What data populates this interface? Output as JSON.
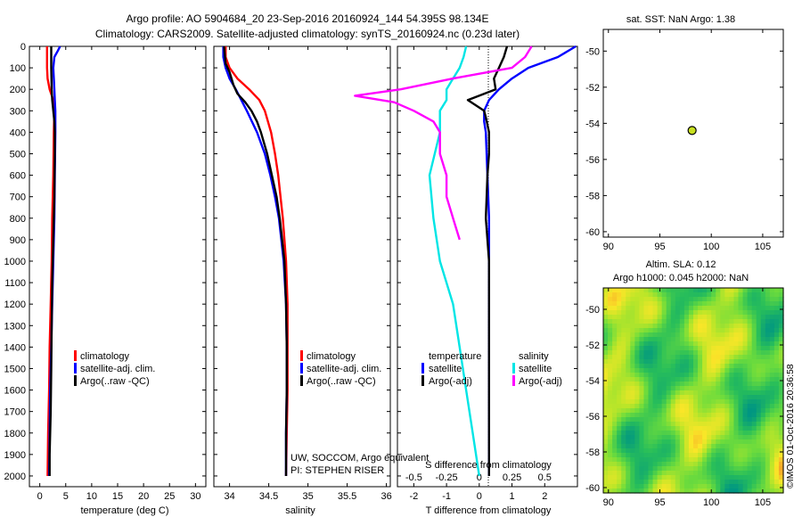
{
  "title": {
    "line1": "Argo profile: AO 5904684_20 23-Sep-2016 20160924_144 54.395S 98.134E",
    "line2": "Climatology: CARS2009. Satellite-adjusted climatology: synTS_20160924.nc (0.23d later)"
  },
  "colors": {
    "clim": "#ff0000",
    "sat": "#0000ff",
    "argo": "#000000",
    "cyan": "#00e5e5",
    "magenta": "#ff00ff",
    "dot": "#c8e020"
  },
  "chart_data": [
    {
      "type": "line",
      "id": "temperature",
      "xlabel": "temperature (deg C)",
      "ylabel": "",
      "xlim": [
        -2,
        32
      ],
      "ylim": [
        2050,
        0
      ],
      "xticks": [
        "0",
        "5",
        "10",
        "15",
        "20",
        "25",
        "30"
      ],
      "xtick_values": [
        0,
        5,
        10,
        15,
        20,
        25,
        30
      ],
      "yticks": [
        "0",
        "100",
        "200",
        "300",
        "400",
        "500",
        "600",
        "700",
        "800",
        "900",
        "1000",
        "1100",
        "1200",
        "1300",
        "1400",
        "1500",
        "1600",
        "1700",
        "1800",
        "1900",
        "2000"
      ],
      "ytick_values": [
        0,
        100,
        200,
        300,
        400,
        500,
        600,
        700,
        800,
        900,
        1000,
        1100,
        1200,
        1300,
        1400,
        1500,
        1600,
        1700,
        1800,
        1900,
        2000
      ],
      "legend": [
        "climatology",
        "satellite-adj. clim.",
        "Argo(..raw -QC)"
      ],
      "series": [
        {
          "name": "climatology",
          "color": "#ff0000",
          "depth": [
            0,
            50,
            100,
            150,
            200,
            250,
            300,
            400,
            600,
            800,
            1000,
            1200,
            1400,
            1600,
            1800,
            2000
          ],
          "values": [
            1.4,
            1.4,
            1.4,
            1.5,
            1.9,
            2.6,
            2.8,
            2.7,
            2.6,
            2.4,
            2.3,
            2.1,
            1.9,
            1.8,
            1.6,
            1.5
          ]
        },
        {
          "name": "satellite-adj. clim.",
          "color": "#0000ff",
          "depth": [
            0,
            20,
            50,
            100,
            150,
            200,
            250,
            300,
            400,
            600,
            800,
            1000,
            1200,
            1400,
            1600,
            1800,
            2000
          ],
          "values": [
            3.9,
            3.5,
            2.8,
            2.6,
            2.7,
            2.8,
            2.9,
            3.0,
            3.0,
            2.9,
            2.8,
            2.6,
            2.4,
            2.2,
            2.0,
            1.9,
            1.8
          ]
        },
        {
          "name": "Argo(..raw -QC)",
          "color": "#000000",
          "depth": [
            0,
            100,
            200,
            250,
            300,
            350,
            400,
            500,
            700,
            900,
            1100,
            1300,
            1500,
            1700,
            1900,
            2000
          ],
          "values": [
            2.2,
            2.2,
            2.3,
            2.4,
            2.6,
            2.8,
            2.9,
            2.9,
            2.8,
            2.6,
            2.4,
            2.3,
            2.2,
            2.1,
            1.9,
            1.9
          ]
        }
      ]
    },
    {
      "type": "line",
      "id": "salinity",
      "xlabel": "salinity",
      "xlim": [
        33.8,
        36.05
      ],
      "ylim": [
        2050,
        0
      ],
      "xticks": [
        "34",
        "34.5",
        "35",
        "35.5",
        "36"
      ],
      "xtick_values": [
        34,
        34.5,
        35,
        35.5,
        36
      ],
      "legend": [
        "climatology",
        "satellite-adj. clim.",
        "Argo(..raw -QC)"
      ],
      "annotation": [
        "UW, SOCCOM, Argo equivalent",
        "PI: STEPHEN RISER"
      ],
      "series": [
        {
          "name": "climatology",
          "color": "#ff0000",
          "depth": [
            0,
            50,
            100,
            150,
            200,
            250,
            300,
            400,
            500,
            600,
            700,
            800,
            1000,
            1200,
            1400,
            1600,
            1800,
            2000
          ],
          "values": [
            33.95,
            33.95,
            34.0,
            34.1,
            34.25,
            34.38,
            34.45,
            34.53,
            34.58,
            34.62,
            34.65,
            34.68,
            34.72,
            34.74,
            34.74,
            34.74,
            34.73,
            34.72
          ]
        },
        {
          "name": "satellite-adj. clim.",
          "color": "#0000ff",
          "depth": [
            0,
            50,
            100,
            150,
            200,
            300,
            400,
            500,
            600,
            700,
            800,
            900,
            1000,
            1200,
            1400,
            1600,
            1800,
            2000
          ],
          "values": [
            33.92,
            33.92,
            33.95,
            34.0,
            34.08,
            34.22,
            34.35,
            34.45,
            34.52,
            34.58,
            34.63,
            34.66,
            34.69,
            34.72,
            34.73,
            34.73,
            34.72,
            34.72
          ]
        },
        {
          "name": "Argo(..raw -QC)",
          "color": "#000000",
          "depth": [
            0,
            80,
            120,
            180,
            220,
            260,
            300,
            350,
            400,
            500,
            600,
            700,
            800,
            900,
            1000,
            1200,
            1400,
            1600,
            1800,
            2000
          ],
          "values": [
            33.93,
            33.95,
            34.0,
            34.05,
            34.1,
            34.2,
            34.28,
            34.35,
            34.4,
            34.48,
            34.54,
            34.6,
            34.64,
            34.67,
            34.7,
            34.72,
            34.73,
            34.73,
            34.72,
            34.72
          ]
        }
      ]
    },
    {
      "type": "line",
      "id": "difference",
      "xlabel": "T difference from climatology",
      "xlabel2": "S difference from climatology",
      "xlim": [
        -2.5,
        3
      ],
      "ylim": [
        2050,
        0
      ],
      "xticks": [
        "-2",
        "-1",
        "0",
        "1",
        "2"
      ],
      "xtick_values": [
        -2,
        -1,
        0,
        1,
        2
      ],
      "xticks2": [
        "-0.5",
        "-0.25",
        "0",
        "0.25",
        "0.5"
      ],
      "legend_headers": [
        "temperature",
        "salinity"
      ],
      "legend": [
        "satellite",
        "Argo(-adj)",
        "satellite",
        "Argo(-adj)"
      ],
      "series": [
        {
          "name": "T satellite",
          "color": "#0000ff",
          "depth": [
            0,
            50,
            100,
            150,
            200,
            250,
            300,
            350,
            400,
            600,
            800,
            1000,
            1200,
            1400,
            1600,
            1800,
            2000
          ],
          "values": [
            2.95,
            2.4,
            1.5,
            1.0,
            0.6,
            0.3,
            0.15,
            0.15,
            0.2,
            0.25,
            0.3,
            0.3,
            0.3,
            0.3,
            0.3,
            0.3,
            0.3
          ]
        },
        {
          "name": "T Argo(-adj)",
          "color": "#000000",
          "depth": [
            0,
            50,
            100,
            150,
            200,
            250,
            300,
            330,
            400,
            500,
            600,
            800,
            1000,
            1200,
            1400,
            1600,
            1800,
            2000
          ],
          "values": [
            0.85,
            0.75,
            0.6,
            0.45,
            0.5,
            -0.35,
            0.15,
            0.2,
            0.3,
            0.3,
            0.25,
            0.2,
            0.3,
            0.3,
            0.3,
            0.3,
            0.3,
            0.3
          ]
        },
        {
          "name": "S satellite",
          "color": "#00e5e5",
          "depth": [
            0,
            50,
            100,
            150,
            200,
            250,
            300,
            400,
            600,
            800,
            1000,
            1200,
            1400,
            1600,
            1800,
            2000
          ],
          "values": [
            -0.1,
            -0.12,
            -0.15,
            -0.2,
            -0.25,
            -0.25,
            -0.3,
            -0.3,
            -0.38,
            -0.35,
            -0.3,
            -0.2,
            -0.15,
            -0.1,
            -0.05,
            0.0
          ]
        },
        {
          "name": "S Argo(-adj)",
          "color": "#ff00ff",
          "depth": [
            0,
            50,
            100,
            150,
            200,
            230,
            260,
            300,
            350,
            400,
            500,
            600,
            700,
            800,
            900
          ],
          "values": [
            0.4,
            0.35,
            0.25,
            -0.2,
            -0.6,
            -0.95,
            -0.65,
            -0.5,
            -0.35,
            -0.3,
            -0.3,
            -0.25,
            -0.25,
            -0.2,
            -0.15
          ]
        }
      ]
    },
    {
      "type": "scatter",
      "id": "position",
      "title": "sat. SST: NaN Argo: 1.38",
      "xlim": [
        89.5,
        107
      ],
      "ylim": [
        -60.3,
        -48.8
      ],
      "xticks": [
        "90",
        "95",
        "100",
        "105"
      ],
      "xtick_values": [
        90,
        95,
        100,
        105
      ],
      "yticks": [
        "-50",
        "-52",
        "-54",
        "-56",
        "-58",
        "-60"
      ],
      "ytick_values": [
        -50,
        -52,
        -54,
        -56,
        -58,
        -60
      ],
      "points": [
        {
          "x": 98.134,
          "y": -54.395
        }
      ]
    },
    {
      "type": "heatmap",
      "id": "altimetry",
      "title": "Altim. SLA: 0.12",
      "subtitle": "Argo h1000: 0.045 h2000: NaN",
      "xlim": [
        89.5,
        107
      ],
      "ylim": [
        -60.3,
        -48.8
      ],
      "xticks": [
        "90",
        "95",
        "100",
        "105"
      ],
      "xtick_values": [
        90,
        95,
        100,
        105
      ],
      "yticks": [
        "-50",
        "-52",
        "-54",
        "-56",
        "-58",
        "-60"
      ],
      "ytick_values": [
        -50,
        -52,
        -54,
        -56,
        -58,
        -60
      ],
      "annotation": "©IMOS 01-Oct-2016 20:36:58"
    }
  ]
}
